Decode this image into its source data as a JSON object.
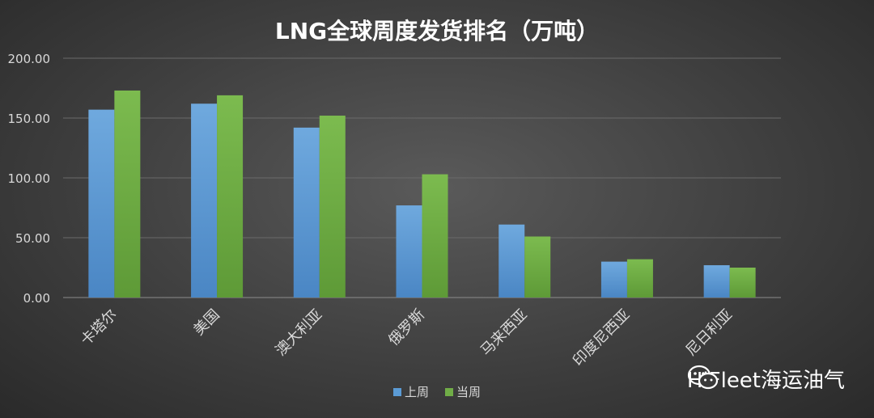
{
  "chart_data": {
    "type": "bar",
    "title": "LNG全球周度发货排名（万吨）",
    "categories": [
      "卡塔尔",
      "美国",
      "澳大利亚",
      "俄罗斯",
      "马来西亚",
      "印度尼西亚",
      "尼日利亚"
    ],
    "series": [
      {
        "name": "上周",
        "color": "#5b9bd5",
        "values": [
          157,
          162,
          142,
          77,
          61,
          30,
          27
        ]
      },
      {
        "name": "当周",
        "color": "#70ad47",
        "values": [
          173,
          169,
          152,
          103,
          51,
          32,
          25
        ]
      }
    ],
    "yticks": [
      "0.00",
      "50.00",
      "100.00",
      "150.00",
      "200.00"
    ],
    "ylim": [
      0,
      200
    ],
    "grid": true,
    "legend_position": "bottom"
  },
  "watermark": {
    "text": "HiFleet海运油气",
    "icon": "wechat-icon"
  }
}
